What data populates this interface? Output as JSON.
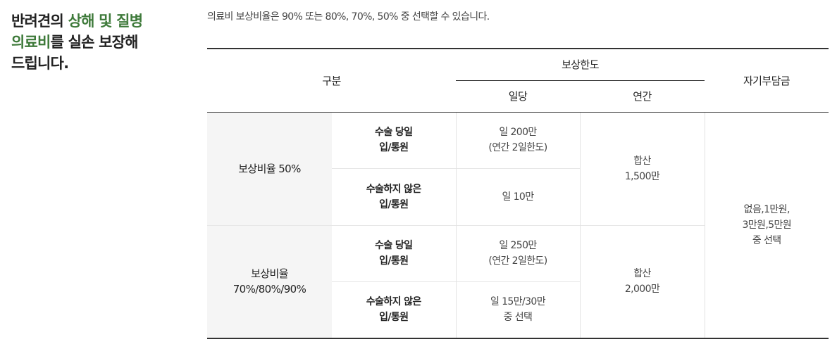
{
  "heading": {
    "part1": "반려견의 ",
    "accent1": "상해 및 질병",
    "accent2": "의료비",
    "part2": "를 실손 보장해",
    "part3": "드립니다."
  },
  "note": "의료비 보상비율은 90% 또는 80%, 70%, 50% 중 선택할 수 있습니다.",
  "table": {
    "header": {
      "category": "구분",
      "coverage_limit": "보상한도",
      "daily": "일당",
      "annual": "연간",
      "deductible": "자기부담금"
    },
    "groups": [
      {
        "ratio_line1": "보상비율 50%",
        "ratio_line2": "",
        "annual_line1": "합산",
        "annual_line2": "1,500만",
        "rows": [
          {
            "kind_line1": "수술 당일",
            "kind_line2": "입/통원",
            "daily_line1": "일 200만",
            "daily_line2": "(연간 2일한도)"
          },
          {
            "kind_line1": "수술하지 않은",
            "kind_line2": "입/통원",
            "daily_line1": "일 10만",
            "daily_line2": ""
          }
        ]
      },
      {
        "ratio_line1": "보상비율",
        "ratio_line2": "70%/80%/90%",
        "annual_line1": "합산",
        "annual_line2": "2,000만",
        "rows": [
          {
            "kind_line1": "수술 당일",
            "kind_line2": "입/통원",
            "daily_line1": "일 250만",
            "daily_line2": "(연간 2일한도)"
          },
          {
            "kind_line1": "수술하지 않은",
            "kind_line2": "입/통원",
            "daily_line1": "일 15만/30만",
            "daily_line2": "중 선택"
          }
        ]
      }
    ],
    "deductible_line1": "없음,1만원,",
    "deductible_line2": "3만원,5만원",
    "deductible_line3": "중 선택"
  }
}
